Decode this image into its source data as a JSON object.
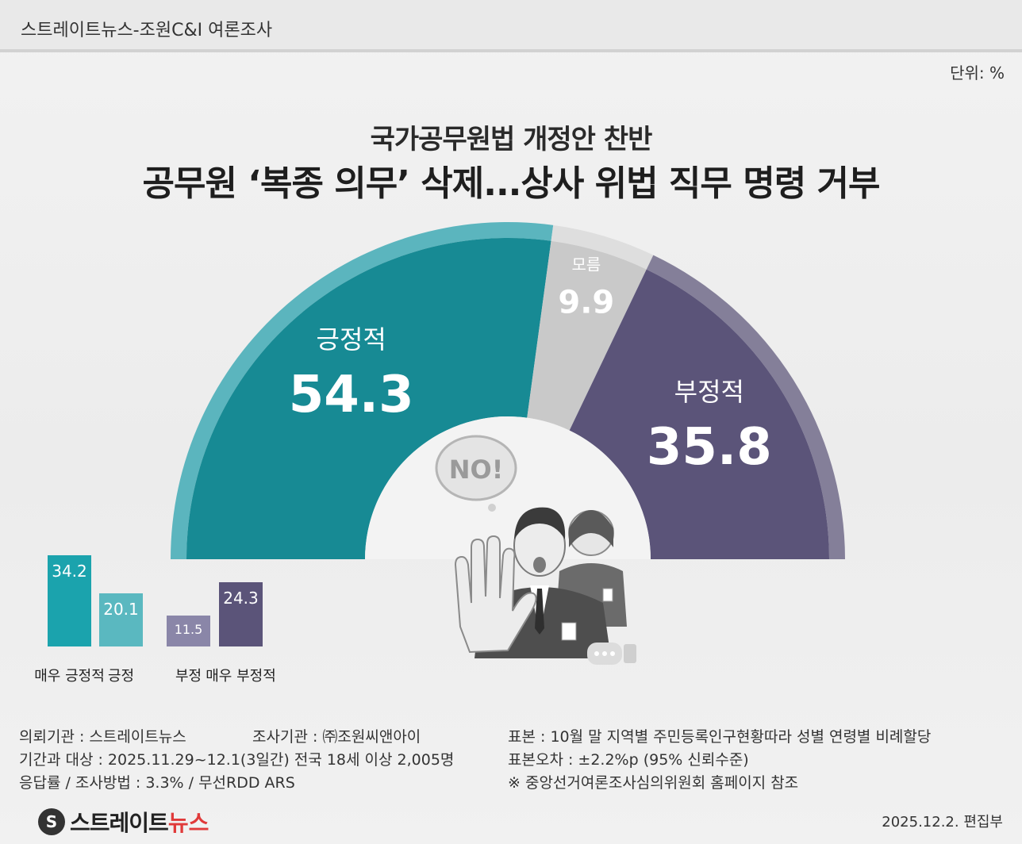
{
  "header": {
    "source_label": "스트레이트뉴스-조원C&I 여론조사",
    "unit_label": "단위: %"
  },
  "headline": {
    "subtitle": "국가공무원법 개정안 찬반",
    "title": "공무원 ‘복종 의무’ 삭제...상사 위법 직무 명령 거부"
  },
  "illustration": {
    "speech_bubble_text": "NO!"
  },
  "chart_data": [
    {
      "type": "pie",
      "variant": "half-donut",
      "categories": [
        "긍정적",
        "모름",
        "부정적"
      ],
      "values": [
        54.3,
        9.9,
        35.8
      ],
      "colors": [
        "#178a94",
        "#c9c9c9",
        "#5b5479"
      ],
      "outer_ring_colors": [
        "#5bb5be",
        "#dedede",
        "#847f99"
      ]
    },
    {
      "type": "bar",
      "categories": [
        "매우 긍정적",
        "긍정",
        "부정",
        "매우 부정적"
      ],
      "values": [
        34.2,
        20.1,
        11.5,
        24.3
      ],
      "colors": [
        "#1ba3ad",
        "#5ab8c0",
        "#8a86a8",
        "#5b5479"
      ]
    }
  ],
  "footer": {
    "client": "의뢰기관 : 스트레이트뉴스",
    "agency": "조사기관 : ㈜조원씨앤아이",
    "period": "기간과 대상 : 2025.11.29~12.1(3일간)   전국 18세 이상  2,005명",
    "response": "응답률 / 조사방법 : 3.3% / 무선RDD ARS",
    "sample": "표본 : 10월 말 지역별 주민등록인구현황따라 성별 연령별 비례할당",
    "error": "표본오차 : ±2.2%p (95% 신뢰수준)",
    "note": "※ 중앙선거여론조사심의위원회 홈페이지 참조",
    "logo_text": "스트레이트",
    "logo_accent": "뉴스",
    "logo_mark": "S",
    "date": "2025.12.2. 편집부"
  }
}
